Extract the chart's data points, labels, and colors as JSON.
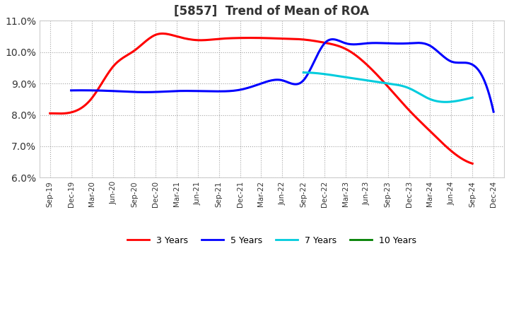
{
  "title": "[5857]  Trend of Mean of ROA",
  "ylim": [
    0.06,
    0.11
  ],
  "yticks": [
    0.06,
    0.07,
    0.08,
    0.09,
    0.1,
    0.11
  ],
  "x_labels": [
    "Sep-19",
    "Dec-19",
    "Mar-20",
    "Jun-20",
    "Sep-20",
    "Dec-20",
    "Mar-21",
    "Jun-21",
    "Sep-21",
    "Dec-21",
    "Mar-22",
    "Jun-22",
    "Sep-22",
    "Dec-22",
    "Mar-23",
    "Jun-23",
    "Sep-23",
    "Dec-23",
    "Mar-24",
    "Jun-24",
    "Sep-24",
    "Dec-24"
  ],
  "series": {
    "3 Years": {
      "color": "#FF0000",
      "values": [
        0.0805,
        0.0808,
        0.0855,
        0.0955,
        0.1005,
        0.1055,
        0.105,
        0.1038,
        0.1042,
        0.1045,
        0.1045,
        0.1043,
        0.104,
        0.103,
        0.101,
        0.096,
        0.089,
        0.0815,
        0.0748,
        0.0685,
        0.0645,
        null
      ]
    },
    "5 Years": {
      "color": "#0000FF",
      "values": [
        null,
        0.0878,
        0.0878,
        0.0876,
        0.0873,
        0.0873,
        0.0876,
        0.0876,
        0.0875,
        0.088,
        0.09,
        0.091,
        0.091,
        0.1028,
        0.1028,
        0.1028,
        0.1028,
        0.1028,
        0.102,
        0.097,
        0.096,
        0.081
      ]
    },
    "7 Years": {
      "color": "#00CCDD",
      "values": [
        null,
        null,
        null,
        null,
        null,
        null,
        null,
        null,
        null,
        null,
        null,
        null,
        0.0935,
        0.093,
        0.092,
        0.091,
        0.09,
        0.0885,
        0.085,
        0.0842,
        0.0855,
        null
      ]
    },
    "10 Years": {
      "color": "#008000",
      "values": [
        null,
        null,
        null,
        null,
        null,
        null,
        null,
        null,
        null,
        null,
        null,
        null,
        null,
        null,
        null,
        null,
        null,
        null,
        null,
        null,
        null,
        null
      ]
    }
  },
  "background_color": "#FFFFFF",
  "plot_bg_color": "#FFFFFF",
  "grid_color": "#999999",
  "title_fontsize": 12,
  "legend_colors": {
    "3 Years": "#FF0000",
    "5 Years": "#0000FF",
    "7 Years": "#00CCDD",
    "10 Years": "#008000"
  }
}
